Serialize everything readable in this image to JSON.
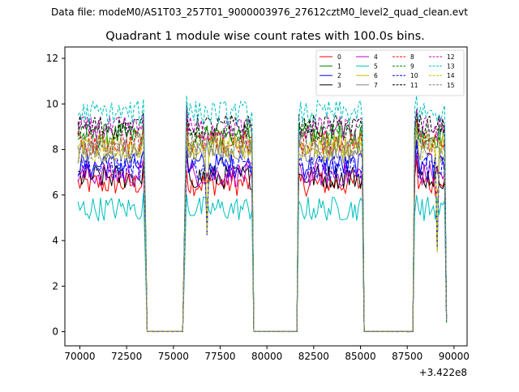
{
  "figure_header": "Data file: modeM0/AS1T03_257T01_9000003976_27612cztM0_level2_quad_clean.evt",
  "chart_data": {
    "type": "line",
    "title": "Quadrant 1 module wise count rates with 100.0s bins.",
    "xlabel": "",
    "ylabel": "",
    "x_offset_label": "+3.422e8",
    "xlim": [
      69200,
      90700
    ],
    "ylim": [
      -0.62,
      12.5
    ],
    "xticks": [
      70000,
      72500,
      75000,
      77500,
      80000,
      82500,
      85000,
      87500,
      90000
    ],
    "yticks": [
      0,
      2,
      4,
      6,
      8,
      10,
      12
    ],
    "legend_position": "upper-right",
    "legend_columns": 4,
    "x_start": 69900,
    "x_step": 100,
    "series_colors": [
      "#ff0000",
      "#008000",
      "#0000ff",
      "#000000",
      "#bf00bf",
      "#00bfbf",
      "#bfbf00",
      "#808080"
    ],
    "series_names": [
      "0",
      "1",
      "2",
      "3",
      "4",
      "5",
      "6",
      "7",
      "8",
      "9",
      "10",
      "11",
      "12",
      "13",
      "14",
      "15"
    ],
    "series_styles": [
      "solid",
      "solid",
      "solid",
      "solid",
      "solid",
      "solid",
      "solid",
      "solid",
      "dashed",
      "dashed",
      "dashed",
      "dashed",
      "dashed",
      "dashed",
      "dashed",
      "dashed"
    ],
    "series_levels": [
      6.5,
      8.6,
      7.3,
      6.8,
      6.9,
      5.4,
      8.2,
      7.9,
      8.3,
      8.8,
      7.2,
      9.0,
      8.9,
      9.6,
      8.0,
      8.1
    ],
    "segments": [
      {
        "x_start": 69900,
        "x_end": 73300,
        "scale": 1.0
      },
      {
        "x_start": 73400,
        "x_end": 73500,
        "scale": 0.6
      },
      {
        "x_start": 73600,
        "x_end": 75500,
        "scale": 0.0
      },
      {
        "x_start": 75600,
        "x_end": 75600,
        "scale": 0.5
      },
      {
        "x_start": 75700,
        "x_end": 79200,
        "scale": 1.0
      },
      {
        "x_start": 79300,
        "x_end": 81600,
        "scale": 0.0
      },
      {
        "x_start": 81700,
        "x_end": 85100,
        "scale": 1.0
      },
      {
        "x_start": 85200,
        "x_end": 87800,
        "scale": 0.0
      },
      {
        "x_start": 87900,
        "x_end": 89600,
        "scale": 1.0
      }
    ],
    "dips": [
      {
        "x": 76800,
        "value": 4.2
      },
      {
        "x": 89100,
        "value": 3.3
      },
      {
        "x": 89600,
        "value": 0.3
      }
    ]
  }
}
